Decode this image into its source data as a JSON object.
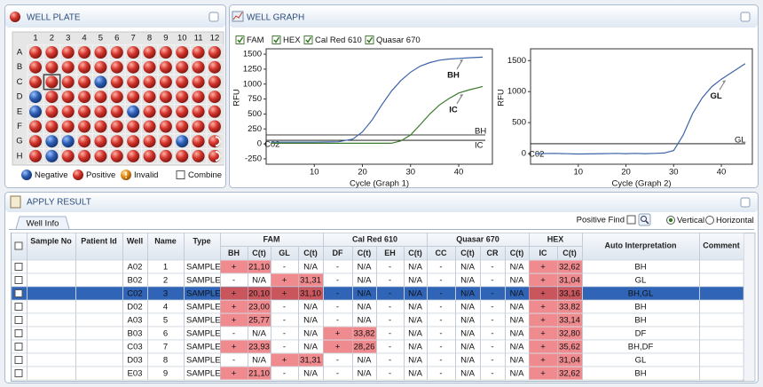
{
  "well_plate": {
    "title": "WELL PLATE",
    "columns": [
      1,
      2,
      3,
      4,
      5,
      6,
      7,
      8,
      9,
      10,
      11,
      12
    ],
    "rows": [
      "A",
      "B",
      "C",
      "D",
      "E",
      "F",
      "G",
      "H"
    ],
    "wells": [
      [
        1,
        1,
        1,
        1,
        1,
        1,
        1,
        1,
        1,
        1,
        1,
        1
      ],
      [
        1,
        1,
        1,
        1,
        1,
        1,
        1,
        1,
        1,
        1,
        1,
        1
      ],
      [
        1,
        1,
        1,
        1,
        0,
        1,
        1,
        1,
        1,
        1,
        1,
        1
      ],
      [
        0,
        1,
        1,
        1,
        1,
        1,
        1,
        1,
        1,
        1,
        1,
        1
      ],
      [
        0,
        1,
        1,
        1,
        1,
        1,
        0,
        1,
        1,
        1,
        1,
        1
      ],
      [
        1,
        1,
        1,
        1,
        1,
        1,
        1,
        1,
        1,
        1,
        1,
        1
      ],
      [
        1,
        0,
        0,
        1,
        1,
        1,
        1,
        1,
        1,
        0,
        1,
        3
      ],
      [
        1,
        0,
        1,
        1,
        1,
        1,
        1,
        1,
        1,
        1,
        1,
        3
      ]
    ],
    "selected_well": [
      2,
      1
    ],
    "legend": [
      {
        "label": "Negative",
        "color": "#2d5fb5"
      },
      {
        "label": "Positive",
        "color": "#d3342b"
      },
      {
        "label": "Invalid",
        "color": "#ea8c12"
      },
      {
        "label": "Combine",
        "color": "#ffffff"
      }
    ]
  },
  "well_graph": {
    "title": "WELL GRAPH",
    "channels": [
      {
        "label": "FAM",
        "checked": true
      },
      {
        "label": "HEX",
        "checked": true
      },
      {
        "label": "Cal Red 610",
        "checked": true
      },
      {
        "label": "Quasar 670",
        "checked": true
      }
    ],
    "graphs": [
      {
        "type": "line",
        "xlabel": "Cycle (Graph 1)",
        "ylabel": "RFU",
        "well_label": "C02",
        "xlim": [
          0,
          47
        ],
        "ylim": [
          -340,
          1590
        ],
        "xticks": [
          10,
          20,
          30,
          40
        ],
        "yticks": [
          -250,
          0,
          250,
          500,
          750,
          1000,
          1250,
          1500
        ],
        "x": [
          1,
          5,
          10,
          15,
          18,
          20,
          22,
          24,
          26,
          28,
          30,
          32,
          34,
          36,
          38,
          40,
          42,
          45
        ],
        "series": [
          {
            "label": "BH",
            "color": "#3d64a8",
            "values": [
              30,
              30,
              30,
              35,
              80,
              200,
              400,
              650,
              880,
              1060,
              1200,
              1300,
              1360,
              1400,
              1420,
              1430,
              1440,
              1450
            ]
          },
          {
            "label": "IC",
            "color": "#3b7a2a",
            "values": [
              10,
              10,
              10,
              10,
              10,
              10,
              10,
              10,
              10,
              50,
              150,
              320,
              500,
              650,
              760,
              850,
              900,
              960
            ]
          }
        ],
        "thresholds": [
          {
            "label": "BH",
            "value": 150,
            "color": "#000000"
          },
          {
            "label": "IC",
            "value": 60,
            "color": "#000000"
          }
        ]
      },
      {
        "type": "line",
        "xlabel": "Cycle (Graph 2)",
        "ylabel": "RFU",
        "well_label": "C02",
        "xlim": [
          0,
          46.5
        ],
        "ylim": [
          -170,
          1690
        ],
        "xticks": [
          10,
          20,
          30,
          40
        ],
        "yticks": [
          0,
          500,
          1000,
          1500
        ],
        "x": [
          1,
          5,
          10,
          15,
          18,
          20,
          22,
          24,
          26,
          28,
          30,
          32,
          34,
          36,
          38,
          40,
          42,
          45
        ],
        "series": [
          {
            "label": "GL",
            "color": "#3d64a8",
            "values": [
              0,
              5,
              -5,
              0,
              5,
              0,
              5,
              0,
              5,
              10,
              50,
              300,
              650,
              900,
              1080,
              1200,
              1300,
              1450
            ]
          }
        ],
        "thresholds": [
          {
            "label": "GL",
            "value": 160,
            "color": "#000000"
          }
        ]
      }
    ]
  },
  "apply_result": {
    "title": "APPLY RESULT",
    "tab": "Well Info",
    "positive_find": "Positive Find",
    "orientation": {
      "options": [
        "Vertical",
        "Horizontal"
      ],
      "selected": 0
    },
    "table": {
      "lead_columns": [
        "Sample No",
        "Patient Id",
        "Well",
        "Name",
        "Type"
      ],
      "groups": [
        {
          "name": "FAM",
          "columns": [
            "BH",
            "C(t)",
            "GL",
            "C(t)"
          ]
        },
        {
          "name": "Cal Red 610",
          "columns": [
            "DF",
            "C(t)",
            "EH",
            "C(t)"
          ]
        },
        {
          "name": "Quasar 670",
          "columns": [
            "CC",
            "C(t)",
            "CR",
            "C(t)"
          ]
        },
        {
          "name": "HEX",
          "columns": [
            "IC",
            "C(t)"
          ]
        }
      ],
      "tail_columns": [
        "Auto  Interpretation",
        "Comment"
      ],
      "selected_row": 2,
      "rows": [
        {
          "well": "A02",
          "name": 1,
          "type": "SAMPLE",
          "results": [
            "+",
            "21,10",
            "-",
            "N/A",
            "-",
            "N/A",
            "-",
            "N/A",
            "-",
            "N/A",
            "-",
            "N/A",
            "+",
            "32,62"
          ],
          "interpretation": "BH"
        },
        {
          "well": "B02",
          "name": 2,
          "type": "SAMPLE",
          "results": [
            "-",
            "N/A",
            "+",
            "31,31",
            "-",
            "N/A",
            "-",
            "N/A",
            "-",
            "N/A",
            "-",
            "N/A",
            "+",
            "31,04"
          ],
          "interpretation": "GL"
        },
        {
          "well": "C02",
          "name": 3,
          "type": "SAMPLE",
          "results": [
            "+",
            "20,10",
            "+",
            "31,10",
            "-",
            "N/A",
            "-",
            "N/A",
            "-",
            "N/A",
            "-",
            "N/A",
            "+",
            "33,16"
          ],
          "interpretation": "BH,GL"
        },
        {
          "well": "D02",
          "name": 4,
          "type": "SAMPLE",
          "results": [
            "+",
            "23,00",
            "-",
            "N/A",
            "-",
            "N/A",
            "-",
            "N/A",
            "-",
            "N/A",
            "-",
            "N/A",
            "+",
            "33,82"
          ],
          "interpretation": "BH"
        },
        {
          "well": "A03",
          "name": 5,
          "type": "SAMPLE",
          "results": [
            "+",
            "25,77",
            "-",
            "N/A",
            "-",
            "N/A",
            "-",
            "N/A",
            "-",
            "N/A",
            "-",
            "N/A",
            "+",
            "33,14"
          ],
          "interpretation": "BH"
        },
        {
          "well": "B03",
          "name": 6,
          "type": "SAMPLE",
          "results": [
            "-",
            "N/A",
            "-",
            "N/A",
            "+",
            "33,82",
            "-",
            "N/A",
            "-",
            "N/A",
            "-",
            "N/A",
            "+",
            "32,80"
          ],
          "interpretation": "DF"
        },
        {
          "well": "C03",
          "name": 7,
          "type": "SAMPLE",
          "results": [
            "+",
            "23,93",
            "-",
            "N/A",
            "+",
            "28,26",
            "-",
            "N/A",
            "-",
            "N/A",
            "-",
            "N/A",
            "+",
            "35,62"
          ],
          "interpretation": "BH,DF"
        },
        {
          "well": "D03",
          "name": 8,
          "type": "SAMPLE",
          "results": [
            "-",
            "N/A",
            "+",
            "31,31",
            "-",
            "N/A",
            "-",
            "N/A",
            "-",
            "N/A",
            "-",
            "N/A",
            "+",
            "31,04"
          ],
          "interpretation": "GL"
        },
        {
          "well": "E03",
          "name": 9,
          "type": "SAMPLE",
          "results": [
            "+",
            "21,10",
            "-",
            "N/A",
            "-",
            "N/A",
            "-",
            "N/A",
            "-",
            "N/A",
            "-",
            "N/A",
            "+",
            "32,62"
          ],
          "interpretation": "BH"
        }
      ]
    }
  }
}
